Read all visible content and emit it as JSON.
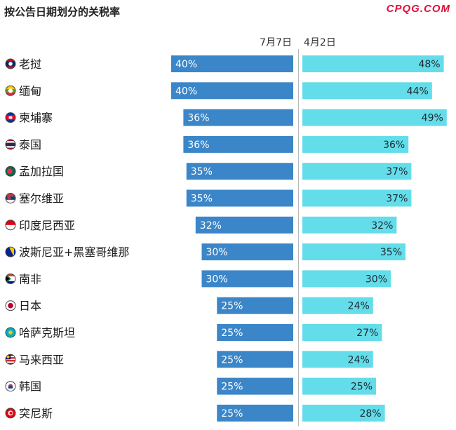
{
  "title": "按公告日期划分的关税率",
  "watermark": {
    "text": "CPQG.COM",
    "color": "#e0103a"
  },
  "colors": {
    "july_bar": "#3b86c8",
    "april_bar": "#63dde9",
    "july_text": "#ffffff",
    "april_text": "#1f2a33"
  },
  "chart_data": {
    "type": "bar",
    "orientation": "horizontal-diverging",
    "categories": [
      "老挝",
      "缅甸",
      "柬埔寨",
      "泰国",
      "孟加拉国",
      "塞尔维亚",
      "印度尼西亚",
      "波斯尼亚+黑塞哥维那",
      "南非",
      "日本",
      "哈萨克斯坦",
      "马来西亚",
      "韩国",
      "突尼斯"
    ],
    "flag_icons": [
      "laos-flag-icon",
      "myanmar-flag-icon",
      "cambodia-flag-icon",
      "thailand-flag-icon",
      "bangladesh-flag-icon",
      "serbia-flag-icon",
      "indonesia-flag-icon",
      "bosnia-flag-icon",
      "south-africa-flag-icon",
      "japan-flag-icon",
      "kazakhstan-flag-icon",
      "malaysia-flag-icon",
      "south-korea-flag-icon",
      "tunisia-flag-icon"
    ],
    "series": [
      {
        "name": "7月7日",
        "values": [
          40,
          40,
          36,
          36,
          35,
          35,
          32,
          30,
          30,
          25,
          25,
          25,
          25,
          25
        ],
        "labels": [
          "40%",
          "40%",
          "36%",
          "36%",
          "35%",
          "35%",
          "32%",
          "30%",
          "30%",
          "25%",
          "25%",
          "25%",
          "25%",
          "25%"
        ]
      },
      {
        "name": "4月2日",
        "values": [
          48,
          44,
          49,
          36,
          37,
          37,
          32,
          35,
          30,
          24,
          27,
          24,
          25,
          28
        ],
        "labels": [
          "48%",
          "44%",
          "49%",
          "36%",
          "37%",
          "37%",
          "32%",
          "35%",
          "30%",
          "24%",
          "27%",
          "24%",
          "25%",
          "28%"
        ]
      }
    ],
    "unit": "%",
    "grid": false,
    "legend": "top-center column headers"
  }
}
